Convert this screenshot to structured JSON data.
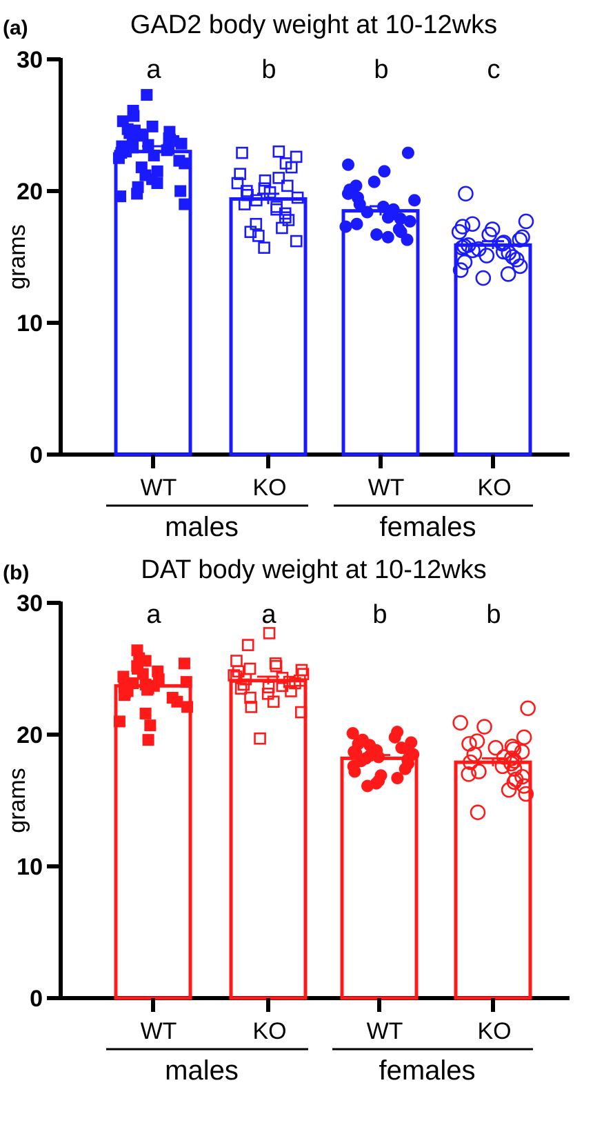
{
  "chart_data": [
    {
      "type": "bar",
      "panel_label": "(a)",
      "title": "GAD2 body weight at 10-12wks",
      "ylabel": "grams",
      "xlabel": "",
      "ylim": [
        0,
        30
      ],
      "yticks": [
        0,
        10,
        20,
        30
      ],
      "color": "#1a1aff",
      "categories": [
        "WT",
        "KO",
        "WT",
        "KO"
      ],
      "groups": [
        {
          "label": "males",
          "categories": [
            0,
            1
          ]
        },
        {
          "label": "females",
          "categories": [
            2,
            3
          ]
        }
      ],
      "significance": [
        "a",
        "b",
        "b",
        "c"
      ],
      "means": [
        23.0,
        19.4,
        18.5,
        15.9
      ],
      "errors": [
        0.4,
        0.4,
        0.35,
        0.3
      ],
      "markers": [
        "square-filled",
        "square-open",
        "circle-filled",
        "circle-open"
      ],
      "points": [
        [
          27.3,
          26.1,
          25.7,
          25.3,
          24.9,
          24.7,
          24.6,
          24.5,
          24.4,
          24.3,
          24.2,
          24.0,
          23.9,
          23.8,
          23.7,
          23.6,
          23.5,
          23.4,
          23.3,
          23.2,
          23.1,
          23.0,
          22.9,
          22.7,
          22.5,
          22.3,
          22.1,
          21.8,
          21.5,
          21.2,
          20.9,
          20.6,
          20.3,
          20.0,
          19.8,
          19.6,
          19.0
        ],
        [
          23.0,
          22.9,
          22.6,
          22.1,
          21.8,
          21.3,
          21.0,
          20.8,
          20.6,
          20.4,
          20.2,
          20.0,
          19.9,
          19.7,
          19.5,
          19.3,
          19.0,
          18.8,
          18.6,
          18.3,
          18.0,
          17.8,
          17.5,
          17.2,
          16.9,
          16.6,
          16.2,
          15.7
        ],
        [
          22.9,
          22.0,
          21.5,
          20.7,
          20.4,
          20.1,
          19.8,
          19.5,
          19.3,
          19.0,
          18.8,
          18.6,
          18.4,
          18.2,
          18.0,
          17.9,
          17.7,
          17.5,
          17.3,
          17.1,
          16.9,
          16.7,
          16.5,
          16.3
        ],
        [
          19.8,
          17.7,
          17.5,
          17.3,
          17.1,
          16.9,
          16.7,
          16.5,
          16.3,
          16.1,
          16.0,
          15.9,
          15.8,
          15.7,
          15.6,
          15.5,
          15.4,
          15.3,
          15.1,
          15.0,
          14.8,
          14.6,
          14.3,
          14.0,
          13.7,
          13.4
        ]
      ]
    },
    {
      "type": "bar",
      "panel_label": "(b)",
      "title": "DAT body weight at 10-12wks",
      "ylabel": "grams",
      "xlabel": "",
      "ylim": [
        0,
        30
      ],
      "yticks": [
        0,
        10,
        20,
        30
      ],
      "color": "#ff1a1a",
      "categories": [
        "WT",
        "KO",
        "WT",
        "KO"
      ],
      "groups": [
        {
          "label": "males",
          "categories": [
            0,
            1
          ]
        },
        {
          "label": "females",
          "categories": [
            2,
            3
          ]
        }
      ],
      "significance": [
        "a",
        "a",
        "b",
        "b"
      ],
      "means": [
        23.7,
        24.1,
        18.2,
        17.9
      ],
      "errors": [
        0.35,
        0.3,
        0.25,
        0.3
      ],
      "markers": [
        "square-filled",
        "square-open",
        "circle-filled",
        "circle-open"
      ],
      "points": [
        [
          26.4,
          25.8,
          25.6,
          25.4,
          25.2,
          25.0,
          24.8,
          24.6,
          24.4,
          24.2,
          24.0,
          23.9,
          23.8,
          23.7,
          23.6,
          23.5,
          23.4,
          23.3,
          23.2,
          23.0,
          22.8,
          22.5,
          22.1,
          21.6,
          21.0,
          20.7,
          19.6
        ],
        [
          27.7,
          26.8,
          25.6,
          25.4,
          25.2,
          25.0,
          24.9,
          24.8,
          24.6,
          24.5,
          24.4,
          24.3,
          24.2,
          24.1,
          24.0,
          23.9,
          23.8,
          23.7,
          23.6,
          23.5,
          23.3,
          23.1,
          22.8,
          22.5,
          22.1,
          21.7,
          19.7
        ],
        [
          20.2,
          20.1,
          19.8,
          19.6,
          19.4,
          19.3,
          19.2,
          19.0,
          18.9,
          18.8,
          18.7,
          18.6,
          18.5,
          18.4,
          18.3,
          18.2,
          18.1,
          18.0,
          17.8,
          17.6,
          17.4,
          17.2,
          16.9,
          16.7,
          16.5,
          16.3,
          16.1
        ],
        [
          22.0,
          20.9,
          20.6,
          19.8,
          19.5,
          19.3,
          19.1,
          19.0,
          18.9,
          18.7,
          18.5,
          18.3,
          18.2,
          18.0,
          17.9,
          17.8,
          17.6,
          17.4,
          17.2,
          17.0,
          16.8,
          16.6,
          16.4,
          16.1,
          15.8,
          15.5,
          14.1
        ]
      ]
    }
  ]
}
